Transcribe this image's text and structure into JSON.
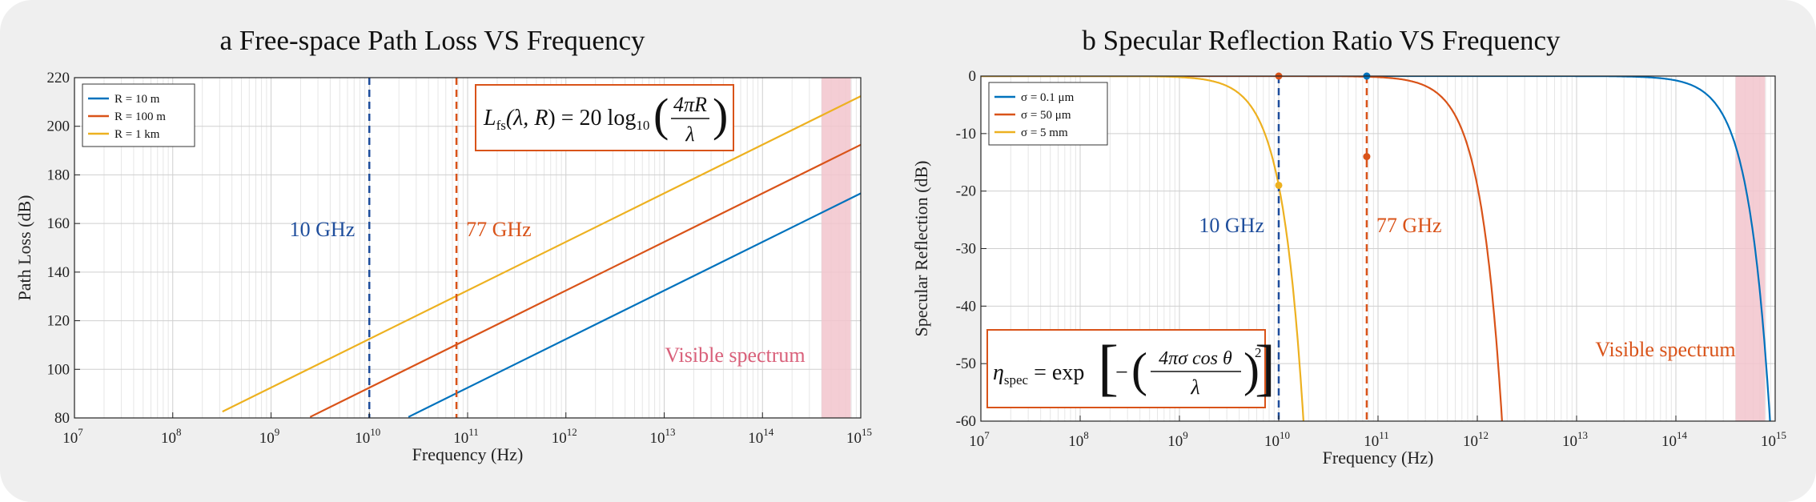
{
  "chart_data": [
    {
      "type": "line",
      "panel_label": "a",
      "title": "Free-space Path Loss VS Frequency",
      "xlabel": "Frequency (Hz)",
      "ylabel": "Path Loss (dB)",
      "xscale": "log",
      "xlim": [
        10000000.0,
        1000000000000000.0
      ],
      "ylim": [
        80,
        220
      ],
      "grid": true,
      "legend_position": "top-left",
      "x_ticks": [
        {
          "base": "10",
          "exp": "7"
        },
        {
          "base": "10",
          "exp": "8"
        },
        {
          "base": "10",
          "exp": "9"
        },
        {
          "base": "10",
          "exp": "10"
        },
        {
          "base": "10",
          "exp": "11"
        },
        {
          "base": "10",
          "exp": "12"
        },
        {
          "base": "10",
          "exp": "13"
        },
        {
          "base": "10",
          "exp": "14"
        },
        {
          "base": "10",
          "exp": "15"
        }
      ],
      "y_ticks": [
        "80",
        "100",
        "120",
        "140",
        "160",
        "180",
        "200",
        "220"
      ],
      "series": [
        {
          "name": "R = 10 m",
          "color": "#0072BD",
          "x": [
            25000000000.0,
            1000000000000000.0
          ],
          "y": [
            80.4,
            172.4
          ]
        },
        {
          "name": "R = 100 m",
          "color": "#D95319",
          "x": [
            2500000000.0,
            1000000000000000.0
          ],
          "y": [
            80.4,
            192.4
          ]
        },
        {
          "name": "R = 1 km",
          "color": "#EDB120",
          "x": [
            320000000.0,
            1000000000000000.0
          ],
          "y": [
            82.6,
            212.4
          ]
        }
      ],
      "vlines": [
        {
          "label": "10 GHz",
          "x": 10000000000.0,
          "color": "#1f4e9c"
        },
        {
          "label": "77 GHz",
          "x": 77000000000.0,
          "color": "#D95319"
        }
      ],
      "band": {
        "label": "Visible spectrum",
        "x_range": [
          400000000000000.0,
          790000000000000.0
        ],
        "color": "#f2c4cc",
        "label_color": "#d9607a"
      },
      "formula": "L_fs(λ, R) = 20 log10(4πR / λ)"
    },
    {
      "type": "line",
      "panel_label": "b",
      "title": "Specular Reflection Ratio VS Frequency",
      "xlabel": "Frequency (Hz)",
      "ylabel": "Specular Reflection (dB)",
      "xscale": "log",
      "xlim": [
        10000000.0,
        1000000000000000.0
      ],
      "ylim": [
        -60,
        0
      ],
      "grid": true,
      "legend_position": "top-left",
      "x_ticks": [
        {
          "base": "10",
          "exp": "7"
        },
        {
          "base": "10",
          "exp": "8"
        },
        {
          "base": "10",
          "exp": "9"
        },
        {
          "base": "10",
          "exp": "10"
        },
        {
          "base": "10",
          "exp": "11"
        },
        {
          "base": "10",
          "exp": "12"
        },
        {
          "base": "10",
          "exp": "13"
        },
        {
          "base": "10",
          "exp": "14"
        },
        {
          "base": "10",
          "exp": "15"
        }
      ],
      "y_ticks": [
        "-60",
        "-50",
        "-40",
        "-30",
        "-20",
        "-10",
        "0"
      ],
      "series": [
        {
          "name": "σ = 0.1 μm",
          "color": "#0072BD",
          "sigma_m": 1e-07
        },
        {
          "name": "σ = 50 μm",
          "color": "#D95319",
          "sigma_m": 5e-05
        },
        {
          "name": "σ = 5 mm",
          "color": "#EDB120",
          "sigma_m": 0.005
        }
      ],
      "markers": [
        {
          "series": "σ = 5 mm",
          "x": 10000000000.0,
          "y": -19
        },
        {
          "series": "σ = 0.1 μm",
          "x": 77000000000.0,
          "y": 0
        },
        {
          "series": "σ = 50 μm",
          "x": 77000000000.0,
          "y": -14
        },
        {
          "series": "σ = 50 μm",
          "x": 10000000000.0,
          "y": 0
        }
      ],
      "vlines": [
        {
          "label": "10 GHz",
          "x": 10000000000.0,
          "color": "#1f4e9c"
        },
        {
          "label": "77 GHz",
          "x": 77000000000.0,
          "color": "#D95319"
        }
      ],
      "band": {
        "label": "Visible spectrum",
        "x_range": [
          400000000000000.0,
          790000000000000.0
        ],
        "color": "#f2c4cc",
        "label_color": "#D95319"
      },
      "formula": "η_spec = exp[−(4πσ cos θ / λ)²]"
    }
  ]
}
